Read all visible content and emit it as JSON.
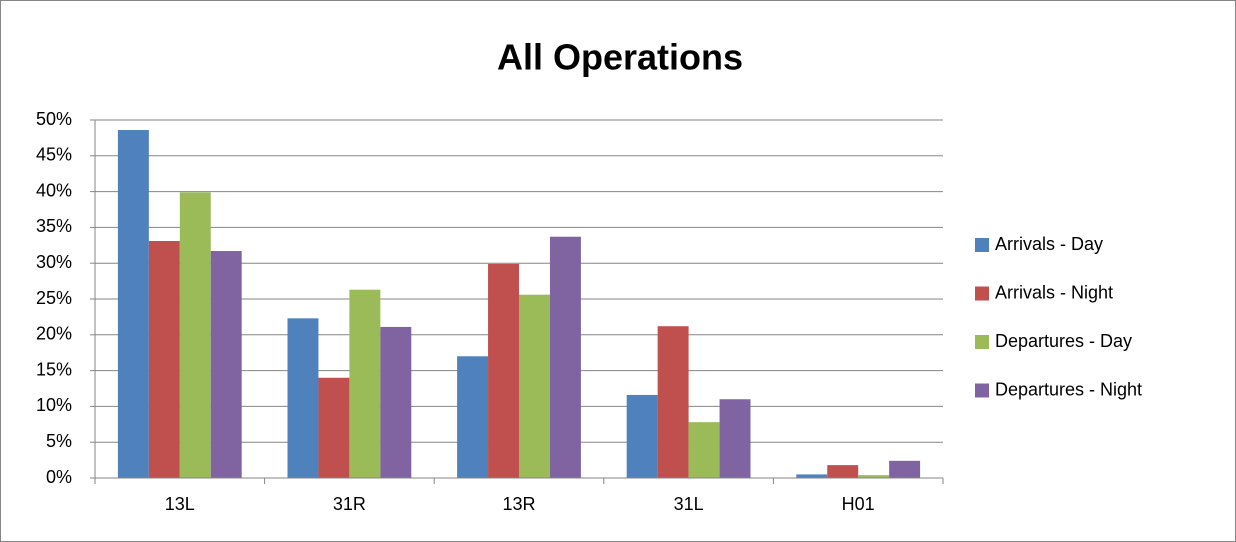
{
  "chart_data": {
    "type": "bar",
    "title": "All Operations",
    "categories": [
      "13L",
      "31R",
      "13R",
      "31L",
      "H01"
    ],
    "series": [
      {
        "name": "Arrivals - Day",
        "color": "#4f81bd",
        "values": [
          48.6,
          22.3,
          17.0,
          11.6,
          0.5
        ]
      },
      {
        "name": "Arrivals - Night",
        "color": "#c0504d",
        "values": [
          33.1,
          14.0,
          29.9,
          21.2,
          1.8
        ]
      },
      {
        "name": "Departures - Day",
        "color": "#9bbb59",
        "values": [
          39.9,
          26.3,
          25.6,
          7.8,
          0.4
        ]
      },
      {
        "name": "Departures - Night",
        "color": "#8064a2",
        "values": [
          31.7,
          21.1,
          33.7,
          11.0,
          2.4
        ]
      }
    ],
    "ylim": [
      0,
      50
    ],
    "yticks": [
      {
        "value": 0,
        "label": "0%"
      },
      {
        "value": 5,
        "label": "5%"
      },
      {
        "value": 10,
        "label": "10%"
      },
      {
        "value": 15,
        "label": "15%"
      },
      {
        "value": 20,
        "label": "20%"
      },
      {
        "value": 25,
        "label": "25%"
      },
      {
        "value": 30,
        "label": "30%"
      },
      {
        "value": 35,
        "label": "35%"
      },
      {
        "value": 40,
        "label": "40%"
      },
      {
        "value": 45,
        "label": "45%"
      },
      {
        "value": 50,
        "label": "50%"
      }
    ],
    "grid": true,
    "legend": "right"
  }
}
